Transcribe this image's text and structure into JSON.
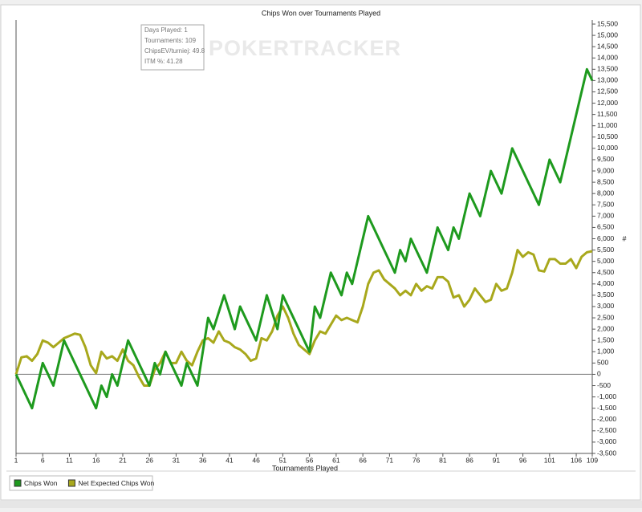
{
  "chart_data": {
    "type": "line",
    "title": "Chips Won over Tournaments Played",
    "x_label": "Tournaments Played",
    "y_label": "#",
    "watermark": "POKERTRACKER",
    "info_box": [
      "Days Played: 1",
      "Tournaments: 109",
      "ChipsEV/turniej: 49.8",
      "ITM %: 41.28"
    ],
    "x": [
      1,
      2,
      3,
      4,
      5,
      6,
      7,
      8,
      9,
      10,
      11,
      12,
      13,
      14,
      15,
      16,
      17,
      18,
      19,
      20,
      21,
      22,
      23,
      24,
      25,
      26,
      27,
      28,
      29,
      30,
      31,
      32,
      33,
      34,
      35,
      36,
      37,
      38,
      39,
      40,
      41,
      42,
      43,
      44,
      45,
      46,
      47,
      48,
      49,
      50,
      51,
      52,
      53,
      54,
      55,
      56,
      57,
      58,
      59,
      60,
      61,
      62,
      63,
      64,
      65,
      66,
      67,
      68,
      69,
      70,
      71,
      72,
      73,
      74,
      75,
      76,
      77,
      78,
      79,
      80,
      81,
      82,
      83,
      84,
      85,
      86,
      87,
      88,
      89,
      90,
      91,
      92,
      93,
      94,
      95,
      96,
      97,
      98,
      99,
      100,
      101,
      102,
      103,
      104,
      105,
      106,
      107,
      108,
      109
    ],
    "series": [
      {
        "name": "Chips Won",
        "color": "#1e9a1e",
        "values": [
          0,
          -500,
          -1000,
          -1500,
          -500,
          500,
          0,
          -500,
          500,
          1500,
          1000,
          500,
          0,
          -500,
          -1000,
          -1500,
          -500,
          -1000,
          0,
          -500,
          500,
          1500,
          1000,
          500,
          0,
          -500,
          500,
          0,
          1000,
          500,
          0,
          -500,
          500,
          0,
          -500,
          1000,
          2500,
          2000,
          2750,
          3500,
          2750,
          2000,
          3000,
          2500,
          2000,
          1500,
          2500,
          3500,
          2750,
          2000,
          3500,
          3000,
          2500,
          2000,
          1500,
          1000,
          3000,
          2500,
          3500,
          4500,
          4000,
          3500,
          4500,
          4000,
          5000,
          6000,
          7000,
          6500,
          6000,
          5500,
          5000,
          4500,
          5500,
          5000,
          6000,
          5500,
          5000,
          4500,
          5500,
          6500,
          6000,
          5500,
          6500,
          6000,
          7000,
          8000,
          7500,
          7000,
          8000,
          9000,
          8500,
          8000,
          9000,
          10000,
          9500,
          9000,
          8500,
          8000,
          7500,
          8500,
          9500,
          9000,
          8500,
          9500,
          10500,
          11500,
          12500,
          13500,
          13000
        ]
      },
      {
        "name": "Net Expected Chips Won",
        "color": "#a8a81c",
        "values": [
          0,
          750,
          800,
          600,
          900,
          1500,
          1400,
          1200,
          1400,
          1600,
          1700,
          1800,
          1750,
          1200,
          400,
          50,
          1000,
          700,
          800,
          600,
          1100,
          600,
          400,
          -100,
          -500,
          -500,
          200,
          500,
          1000,
          500,
          500,
          1000,
          600,
          400,
          1000,
          1500,
          1600,
          1400,
          1900,
          1500,
          1400,
          1200,
          1100,
          900,
          600,
          700,
          1600,
          1500,
          1900,
          2600,
          3000,
          2500,
          1800,
          1300,
          1100,
          900,
          1500,
          1900,
          1800,
          2200,
          2600,
          2400,
          2500,
          2400,
          2300,
          3000,
          4000,
          4500,
          4600,
          4200,
          4000,
          3800,
          3500,
          3700,
          3500,
          4000,
          3700,
          3900,
          3800,
          4300,
          4300,
          4100,
          3400,
          3500,
          3000,
          3300,
          3800,
          3500,
          3200,
          3300,
          4000,
          3700,
          3800,
          4500,
          5500,
          5200,
          5400,
          5300,
          4600,
          4550,
          5100,
          5100,
          4900,
          4900,
          5100,
          4700,
          5200,
          5400,
          5450
        ]
      }
    ],
    "xlim": [
      1,
      109
    ],
    "xticks": [
      1,
      6,
      11,
      16,
      21,
      26,
      31,
      36,
      41,
      46,
      51,
      56,
      61,
      66,
      71,
      76,
      81,
      86,
      91,
      96,
      101,
      106,
      109
    ],
    "ylim": [
      -3500,
      15500
    ],
    "yticks": [
      {
        "value": -3500,
        "label": "-3,500"
      },
      {
        "value": -3000,
        "label": "-3,000"
      },
      {
        "value": -2500,
        "label": "-2,500"
      },
      {
        "value": -2000,
        "label": "-2,000"
      },
      {
        "value": -1500,
        "label": "-1,500"
      },
      {
        "value": -1000,
        "label": "-1,000"
      },
      -500,
      0,
      500,
      {
        "value": 1000,
        "label": "1,000"
      },
      {
        "value": 1500,
        "label": "1,500"
      },
      {
        "value": 2000,
        "label": "2,000"
      },
      {
        "value": 2500,
        "label": "2,500"
      },
      {
        "value": 3000,
        "label": "3,000"
      },
      {
        "value": 3500,
        "label": "3,500"
      },
      {
        "value": 4000,
        "label": "4,000"
      },
      {
        "value": 4500,
        "label": "4,500"
      },
      {
        "value": 5000,
        "label": "5,000"
      },
      {
        "value": 5500,
        "label": "5,500"
      },
      {
        "value": 6000,
        "label": "6,000"
      },
      {
        "value": 6500,
        "label": "6,500"
      },
      {
        "value": 7000,
        "label": "7,000"
      },
      {
        "value": 7500,
        "label": "7,500"
      },
      {
        "value": 8000,
        "label": "8,000"
      },
      {
        "value": 8500,
        "label": "8,500"
      },
      {
        "value": 9000,
        "label": "9,000"
      },
      {
        "value": 9500,
        "label": "9,500"
      },
      {
        "value": 10000,
        "label": "10,000"
      },
      {
        "value": 10500,
        "label": "10,500"
      },
      {
        "value": 11000,
        "label": "11,000"
      },
      {
        "value": 11500,
        "label": "11,500"
      },
      {
        "value": 12000,
        "label": "12,000"
      },
      {
        "value": 12500,
        "label": "12,500"
      },
      {
        "value": 13000,
        "label": "13,000"
      },
      {
        "value": 13500,
        "label": "13,500"
      },
      {
        "value": 14000,
        "label": "14,000"
      },
      {
        "value": 14500,
        "label": "14,500"
      },
      {
        "value": 15000,
        "label": "15,000"
      },
      {
        "value": 15500,
        "label": "15,500"
      }
    ],
    "legend": "bottom-left"
  }
}
